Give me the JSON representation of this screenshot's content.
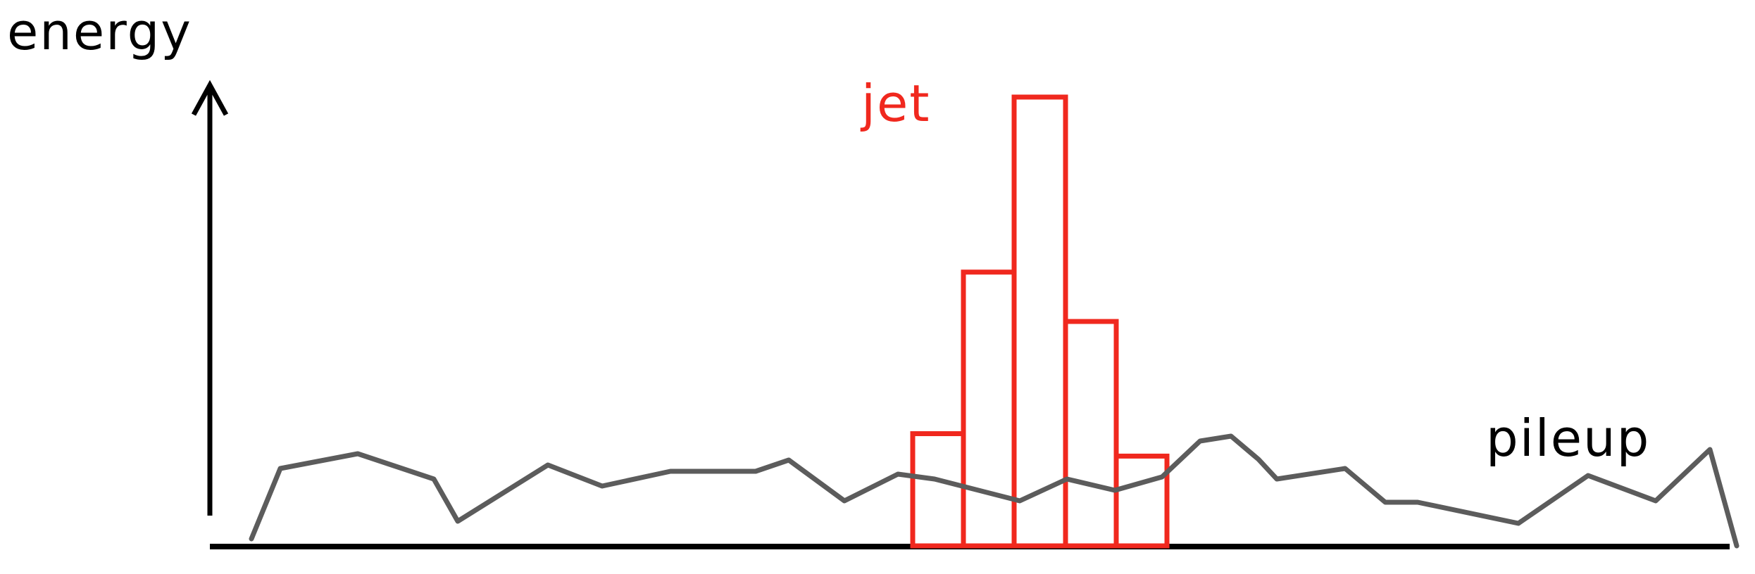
{
  "labels": {
    "y_axis": "energy",
    "jet": "jet",
    "pileup": "pileup"
  },
  "colors": {
    "axes": "#000000",
    "jet": "#f0281e",
    "pileup": "#5c5c5c",
    "background": "#ffffff"
  },
  "jet_bars": [
    {
      "bin": 1,
      "height": 0.25
    },
    {
      "bin": 2,
      "height": 0.61
    },
    {
      "bin": 3,
      "height": 1.0
    },
    {
      "bin": 4,
      "height": 0.5
    },
    {
      "bin": 5,
      "height": 0.2
    }
  ]
}
